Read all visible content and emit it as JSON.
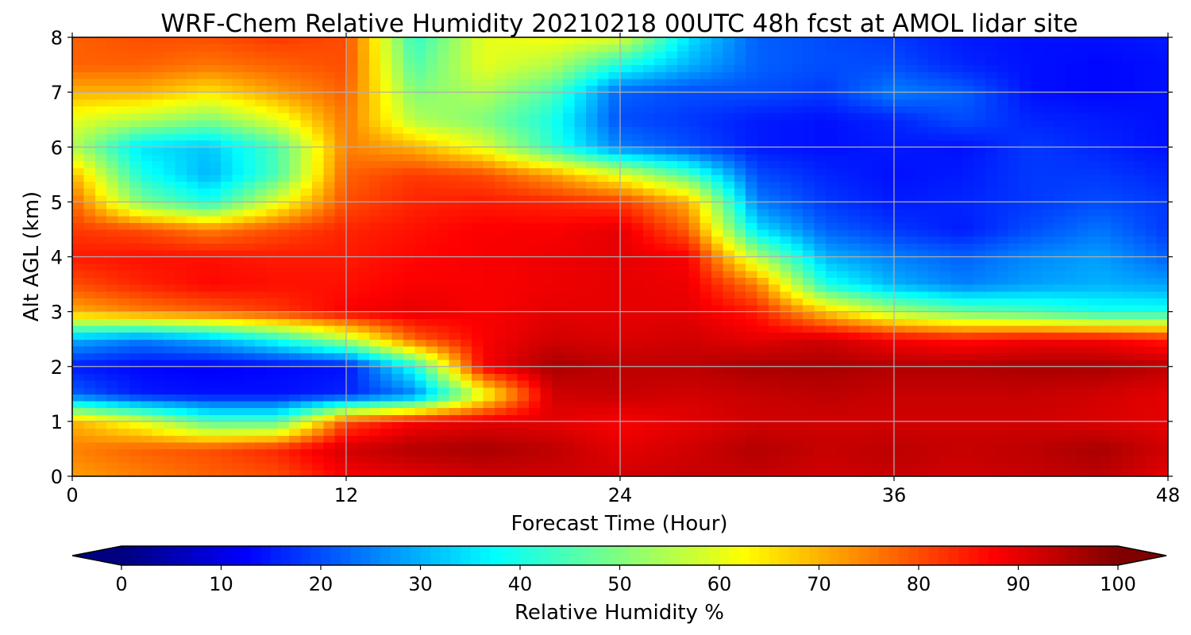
{
  "chart_data": {
    "type": "heatmap",
    "title": "WRF-Chem Relative Humidity 20210218 00UTC 48h fcst at AMOL lidar site",
    "xlabel": "Forecast Time (Hour)",
    "ylabel": "Alt AGL (km)",
    "xlim": [
      0,
      48
    ],
    "ylim": [
      0,
      8
    ],
    "x_ticks": [
      "0",
      "12",
      "24",
      "36",
      "48"
    ],
    "y_ticks": [
      "0",
      "1",
      "2",
      "3",
      "4",
      "5",
      "6",
      "7",
      "8"
    ],
    "grid": true,
    "colorbar": {
      "label": "Relative Humidity %",
      "ticks": [
        "0",
        "10",
        "20",
        "30",
        "40",
        "50",
        "60",
        "70",
        "80",
        "90",
        "100"
      ],
      "range": [
        0,
        100
      ],
      "colormap": "jet",
      "extend": "both"
    },
    "x": [
      0,
      3,
      6,
      9,
      12,
      15,
      18,
      21,
      24,
      27,
      30,
      33,
      36,
      39,
      42,
      45,
      48
    ],
    "y": [
      0,
      0.5,
      1,
      1.5,
      2,
      2.5,
      3,
      3.5,
      4,
      4.5,
      5,
      5.5,
      6,
      6.5,
      7,
      7.5,
      8
    ],
    "values": [
      [
        72,
        75,
        78,
        80,
        88,
        90,
        92,
        92,
        92,
        93,
        93,
        92,
        93,
        92,
        93,
        94,
        90
      ],
      [
        75,
        78,
        80,
        84,
        92,
        95,
        96,
        94,
        90,
        92,
        95,
        93,
        94,
        93,
        94,
        96,
        92
      ],
      [
        70,
        60,
        45,
        45,
        80,
        88,
        90,
        90,
        88,
        90,
        92,
        92,
        92,
        92,
        92,
        91,
        90
      ],
      [
        22,
        15,
        14,
        14,
        16,
        25,
        60,
        92,
        93,
        92,
        93,
        94,
        93,
        93,
        93,
        92,
        90
      ],
      [
        15,
        13,
        12,
        13,
        14,
        40,
        88,
        96,
        94,
        94,
        96,
        96,
        95,
        95,
        96,
        96,
        94
      ],
      [
        30,
        25,
        30,
        40,
        55,
        78,
        88,
        92,
        91,
        92,
        90,
        92,
        88,
        86,
        88,
        88,
        85
      ],
      [
        70,
        75,
        78,
        82,
        88,
        90,
        88,
        90,
        90,
        90,
        85,
        68,
        55,
        48,
        45,
        40,
        40
      ],
      [
        80,
        84,
        87,
        86,
        86,
        88,
        88,
        89,
        90,
        89,
        75,
        40,
        30,
        25,
        28,
        30,
        28
      ],
      [
        85,
        86,
        86,
        85,
        85,
        87,
        88,
        89,
        90,
        88,
        55,
        30,
        25,
        22,
        26,
        28,
        22
      ],
      [
        82,
        80,
        75,
        80,
        84,
        86,
        88,
        88,
        90,
        78,
        35,
        22,
        18,
        15,
        20,
        24,
        18
      ],
      [
        78,
        50,
        40,
        60,
        80,
        84,
        85,
        84,
        82,
        70,
        25,
        18,
        15,
        16,
        18,
        20,
        18
      ],
      [
        70,
        40,
        30,
        45,
        78,
        82,
        80,
        72,
        60,
        45,
        20,
        16,
        14,
        15,
        18,
        18,
        16
      ],
      [
        55,
        35,
        32,
        45,
        75,
        70,
        60,
        42,
        25,
        20,
        15,
        14,
        15,
        14,
        18,
        16,
        14
      ],
      [
        60,
        55,
        50,
        60,
        76,
        55,
        50,
        40,
        20,
        18,
        15,
        14,
        16,
        20,
        16,
        15,
        14
      ],
      [
        70,
        70,
        65,
        72,
        78,
        50,
        55,
        45,
        22,
        20,
        20,
        18,
        25,
        22,
        14,
        13,
        14
      ],
      [
        78,
        78,
        76,
        78,
        80,
        45,
        60,
        55,
        40,
        30,
        22,
        20,
        20,
        16,
        14,
        13,
        14
      ],
      [
        78,
        80,
        80,
        82,
        80,
        42,
        60,
        62,
        60,
        35,
        22,
        20,
        18,
        15,
        14,
        14,
        15
      ]
    ]
  }
}
